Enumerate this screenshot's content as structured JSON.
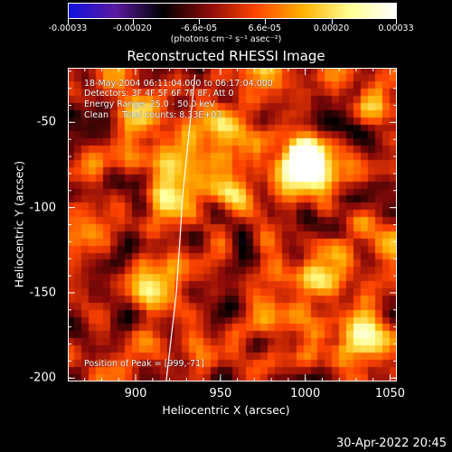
{
  "colorbar": {
    "labels": [
      "-0.00033",
      "-0.00020",
      "-6.6e-05",
      "6.6e-05",
      "0.00020",
      "0.00033"
    ],
    "units": "(photons cm⁻² s⁻¹ asec⁻²)",
    "range": [
      -0.00033,
      0.00033
    ],
    "colors": [
      "#1010e0",
      "#5a1aa0",
      "#000000",
      "#8a0a0a",
      "#ff4400",
      "#ffb000",
      "#ffff90",
      "#ffffff"
    ]
  },
  "chart_data": {
    "type": "heatmap",
    "title": "Reconstructed RHESSI Image",
    "xlabel": "Heliocentric X (arcsec)",
    "ylabel": "Heliocentric Y (arcsec)",
    "xlim": [
      860,
      1054
    ],
    "ylim": [
      -202,
      -18
    ],
    "xticks": [
      900,
      950,
      1000,
      1050
    ],
    "yticks": [
      -50,
      -100,
      -150,
      -200
    ],
    "annotations": [
      "18-May-2004 06:11:04.000 to 06:17:04.000",
      "Detectors: 3F 4F 5F 6F 7F 8F, Att 0",
      "Energy Range: 25.0 - 50.0 keV",
      "Clean     Total counts: 8.33E+03"
    ],
    "peak_label": "Position of Peak = [999,-71]",
    "peak": [
      999,
      -71
    ],
    "limb_curve_x": [
      935,
      928,
      924,
      918
    ],
    "limb_curve_y": [
      -22,
      -90,
      -150,
      -202
    ]
  },
  "timestamp": "30-Apr-2022 20:45"
}
